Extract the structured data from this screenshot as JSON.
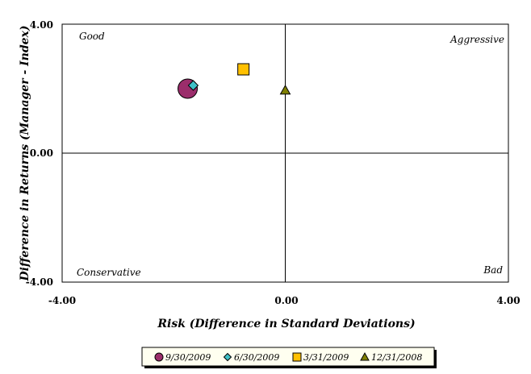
{
  "chart_data": {
    "type": "scatter",
    "title": "",
    "xlabel": "Risk (Difference in Standard Deviations)",
    "ylabel": "Difference in Returns (Manager - Index)",
    "xlim": [
      -4,
      4
    ],
    "ylim": [
      -4,
      4
    ],
    "x_ticks": [
      "-4.00",
      "0.00",
      "4.00"
    ],
    "y_ticks": [
      "4.00",
      "0.00",
      "-4.00"
    ],
    "grid": false,
    "quadrant_labels": {
      "top_left": "Good",
      "top_right": "Aggressive",
      "bottom_left": "Conservative",
      "bottom_right": "Bad"
    },
    "legend_position": "bottom",
    "series": [
      {
        "name": "9/30/2009",
        "marker": "circle",
        "color": "#9B2D6B",
        "x": -1.75,
        "y": 2.0
      },
      {
        "name": "6/30/2009",
        "marker": "diamond",
        "color": "#40C0C8",
        "x": -1.65,
        "y": 2.1
      },
      {
        "name": "3/31/2009",
        "marker": "square",
        "color": "#FFC000",
        "x": -0.75,
        "y": 2.6
      },
      {
        "name": "12/31/2008",
        "marker": "triangle",
        "color": "#7F7F00",
        "x": 0.0,
        "y": 1.95
      }
    ]
  }
}
